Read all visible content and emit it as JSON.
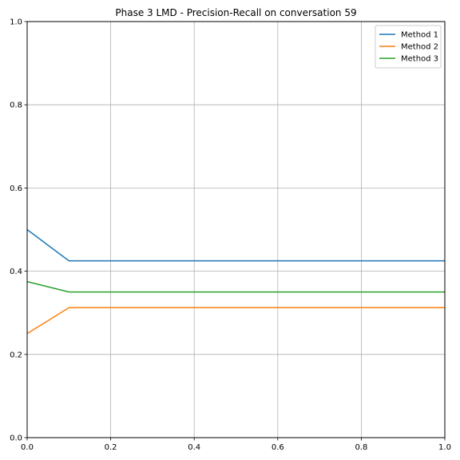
{
  "chart_data": {
    "type": "line",
    "title": "Phase 3 LMD - Precision-Recall on conversation 59",
    "xlabel": "",
    "ylabel": "",
    "xlim": [
      0.0,
      1.0
    ],
    "ylim": [
      0.0,
      1.0
    ],
    "grid": true,
    "legend_position": "top-right",
    "x_ticks": [
      "0.0",
      "0.2",
      "0.4",
      "0.6",
      "0.8",
      "1.0"
    ],
    "y_ticks": [
      "0.0",
      "0.2",
      "0.4",
      "0.6",
      "0.8",
      "1.0"
    ],
    "series": [
      {
        "name": "Method 1",
        "color": "#1f77b4",
        "x": [
          0.0,
          0.1,
          1.0
        ],
        "y": [
          0.5,
          0.425,
          0.425
        ]
      },
      {
        "name": "Method 2",
        "color": "#ff7f0e",
        "x": [
          0.0,
          0.1,
          1.0
        ],
        "y": [
          0.25,
          0.3125,
          0.3125
        ]
      },
      {
        "name": "Method 3",
        "color": "#2ca02c",
        "x": [
          0.0,
          0.1,
          1.0
        ],
        "y": [
          0.375,
          0.35,
          0.35
        ]
      }
    ]
  }
}
